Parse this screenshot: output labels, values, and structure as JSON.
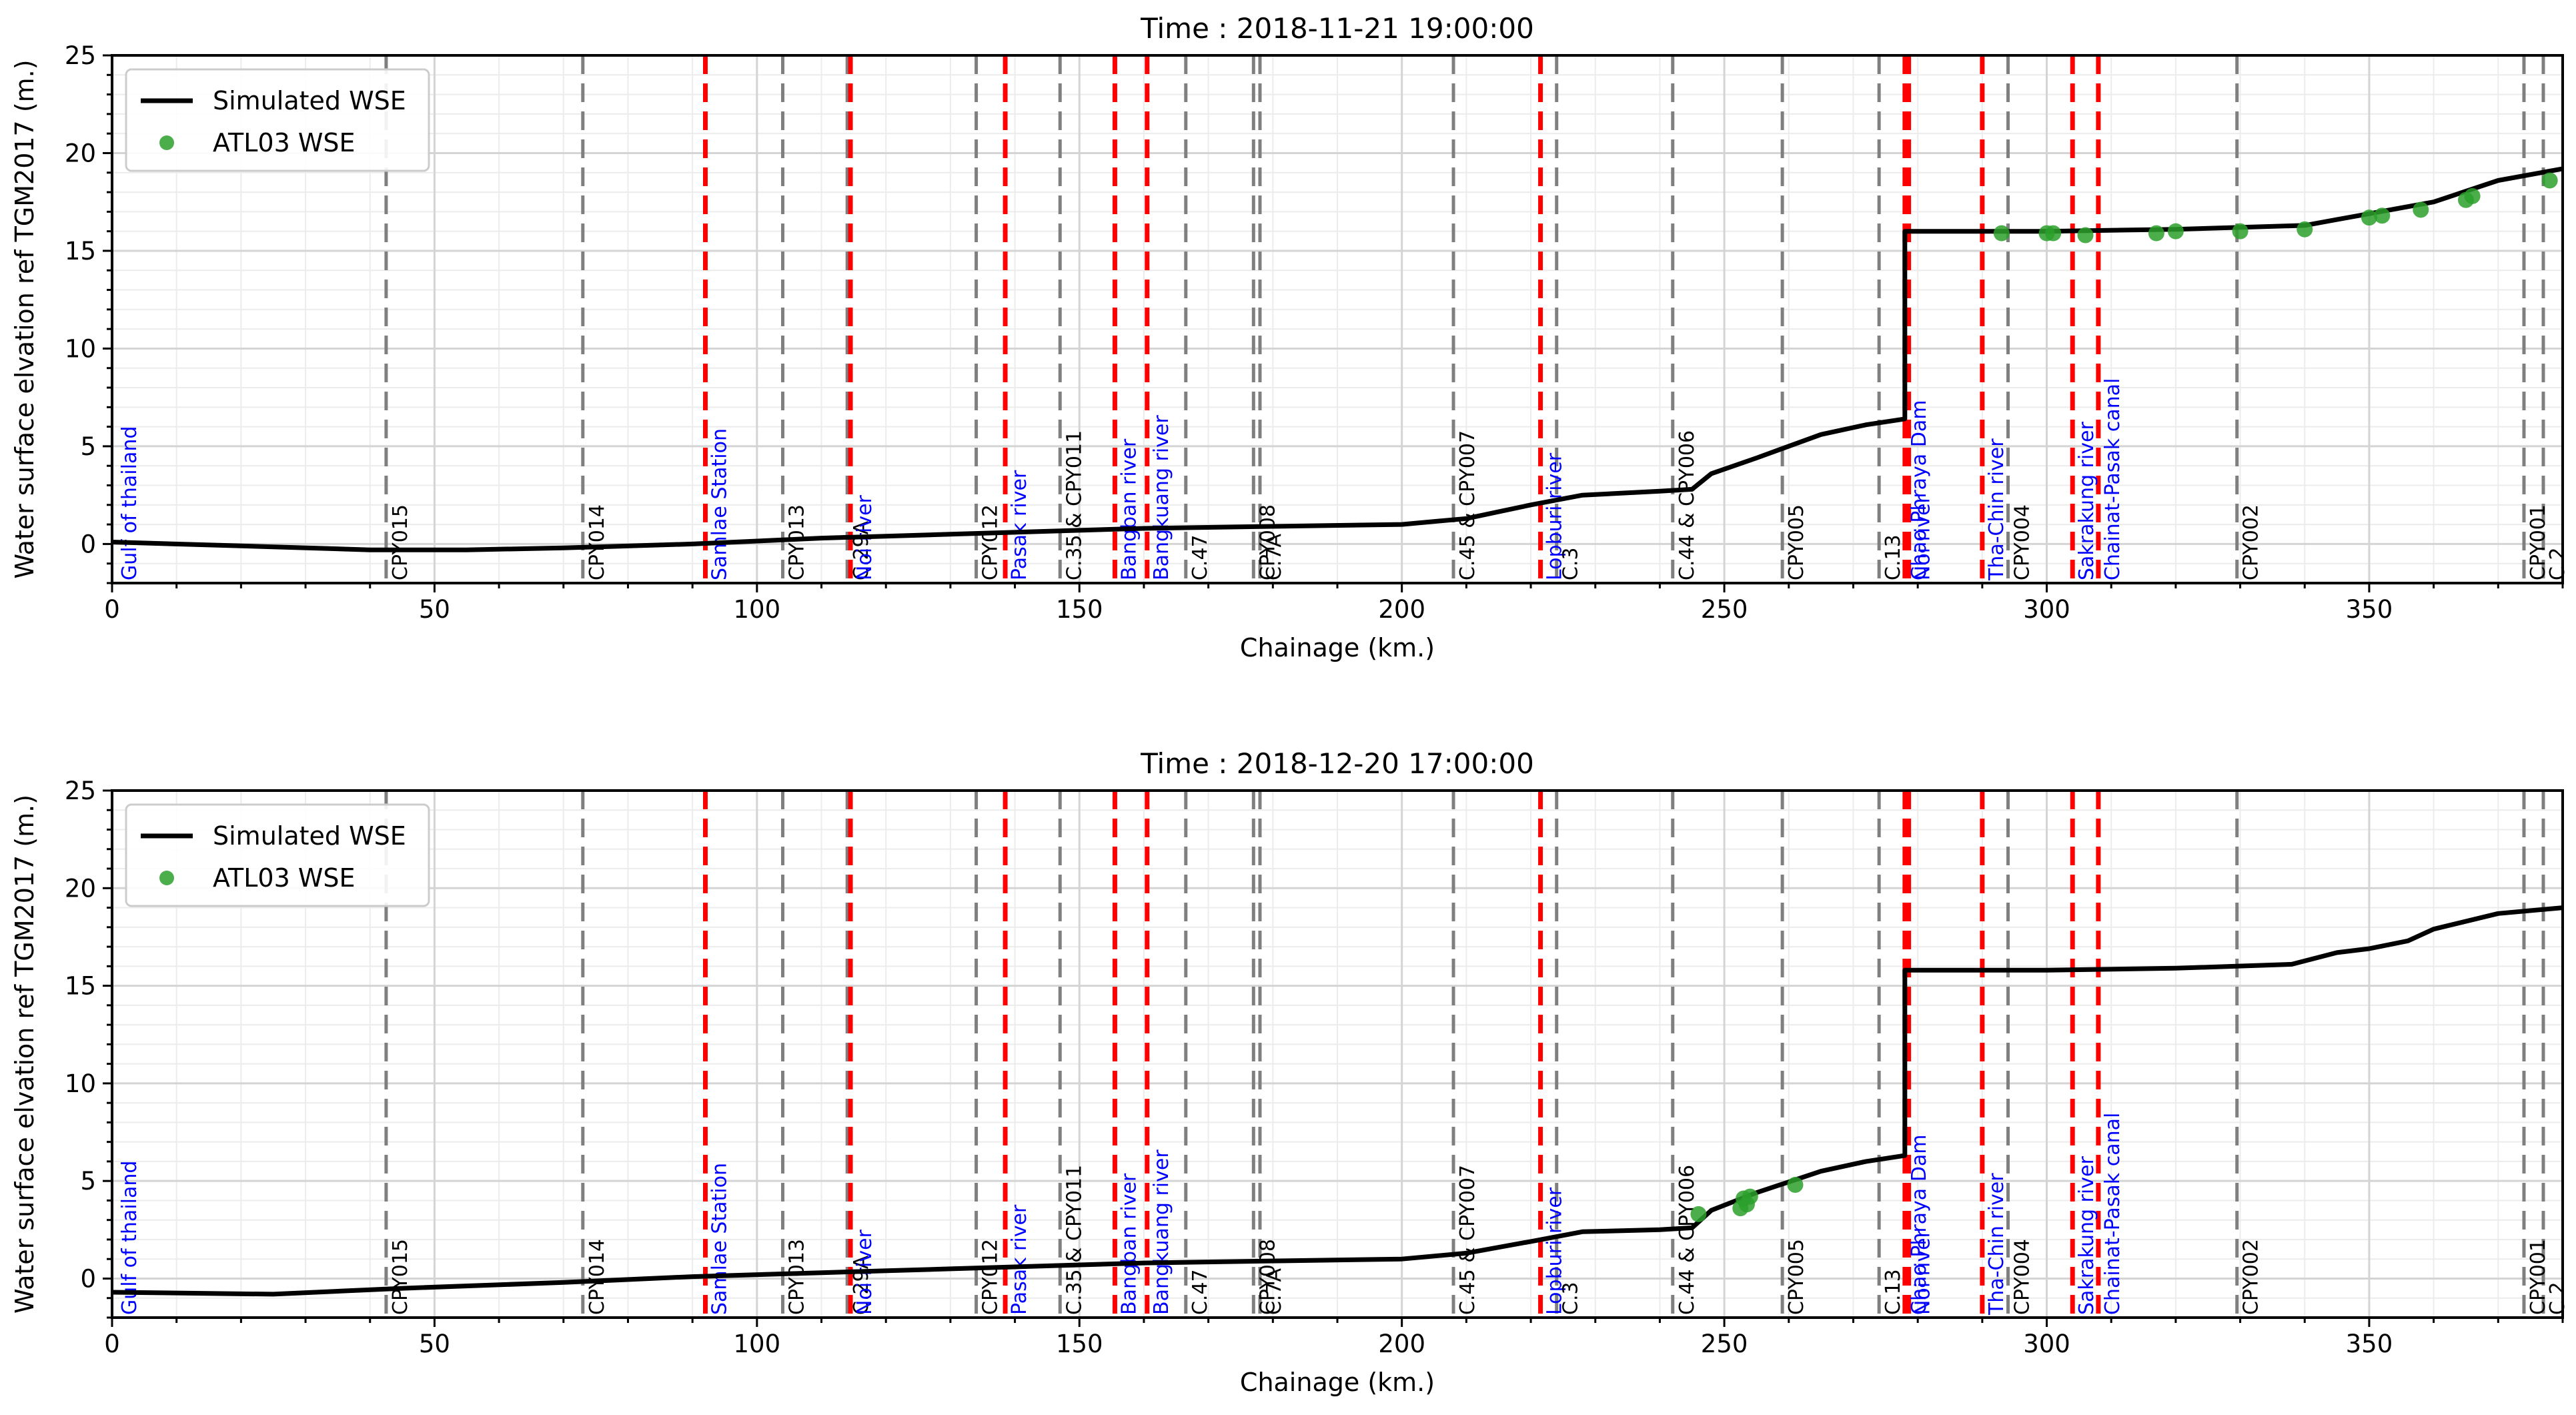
{
  "colors": {
    "sim_line": "#000000",
    "atl_points": "#2ca02c",
    "tributary": "#ff0000",
    "station": "#7f7f7f",
    "label_station": "#000000",
    "label_tributary": "#0000ff"
  },
  "chart_data": [
    {
      "type": "line",
      "title": "Time : 2018-11-21 19:00:00",
      "xlabel": "Chainage (km.)",
      "ylabel": "Water surface elvation ref TGM2017 (m.)",
      "xlim": [
        0,
        380
      ],
      "ylim": [
        -2,
        25
      ],
      "xticks": [
        0,
        50,
        100,
        150,
        200,
        250,
        300,
        350
      ],
      "yticks": [
        0,
        5,
        10,
        15,
        20,
        25
      ],
      "grid": true,
      "legend": {
        "position": "top-left",
        "entries": [
          "Simulated WSE",
          "ATL03 WSE"
        ]
      },
      "series": [
        {
          "name": "Simulated WSE",
          "x": [
            0,
            20,
            40,
            55,
            70,
            90,
            110,
            130,
            150,
            160,
            180,
            200,
            210,
            220,
            228,
            240,
            245,
            248,
            255,
            265,
            272,
            278,
            278,
            285,
            300,
            320,
            340,
            345,
            355,
            360,
            370,
            380
          ],
          "y": [
            0.1,
            -0.1,
            -0.3,
            -0.3,
            -0.2,
            0.0,
            0.3,
            0.5,
            0.7,
            0.8,
            0.9,
            1.0,
            1.3,
            2.0,
            2.5,
            2.7,
            2.8,
            3.6,
            4.4,
            5.6,
            6.1,
            6.4,
            16.0,
            16.0,
            16.0,
            16.1,
            16.3,
            16.6,
            17.2,
            17.5,
            18.6,
            19.2
          ]
        },
        {
          "name": "ATL03 WSE",
          "x": [
            293,
            300,
            301,
            306,
            317,
            320,
            330,
            340,
            350,
            352,
            358,
            365,
            366,
            378
          ],
          "y": [
            15.9,
            15.9,
            15.9,
            15.8,
            15.9,
            16.0,
            16.0,
            16.1,
            16.7,
            16.8,
            17.1,
            17.6,
            17.8,
            18.6
          ]
        }
      ],
      "vlines": [
        {
          "x": 0.5,
          "kind": "none",
          "label": "Gulf of thailand",
          "label_color": "blue"
        },
        {
          "x": 42.5,
          "kind": "station",
          "label": "CPY015",
          "label_color": "black"
        },
        {
          "x": 73,
          "kind": "station",
          "label": "CPY014",
          "label_color": "black"
        },
        {
          "x": 92,
          "kind": "tributary",
          "label": "Samlae Station",
          "label_color": "blue"
        },
        {
          "x": 104,
          "kind": "station",
          "label": "CPY013",
          "label_color": "black"
        },
        {
          "x": 114,
          "kind": "station",
          "label": "C.29A",
          "label_color": "black"
        },
        {
          "x": 114.5,
          "kind": "tributary",
          "label": "Noi river",
          "label_color": "blue"
        },
        {
          "x": 134,
          "kind": "station",
          "label": "CPY012",
          "label_color": "black"
        },
        {
          "x": 138.5,
          "kind": "tributary",
          "label": "Pasak river",
          "label_color": "blue"
        },
        {
          "x": 147,
          "kind": "station",
          "label": "C.35 & CPY011",
          "label_color": "black"
        },
        {
          "x": 155.5,
          "kind": "tributary",
          "label": "Bangban river",
          "label_color": "blue"
        },
        {
          "x": 160.5,
          "kind": "tributary",
          "label": "Bangkuang river",
          "label_color": "blue"
        },
        {
          "x": 166.5,
          "kind": "station",
          "label": "C.47",
          "label_color": "black"
        },
        {
          "x": 177,
          "kind": "station",
          "label": "CPY008",
          "label_color": "black"
        },
        {
          "x": 178,
          "kind": "station",
          "label": "C.7A",
          "label_color": "black"
        },
        {
          "x": 208,
          "kind": "station",
          "label": "C.45 & CPY007",
          "label_color": "black"
        },
        {
          "x": 221.5,
          "kind": "tributary",
          "label": "Lopburi river",
          "label_color": "blue"
        },
        {
          "x": 224,
          "kind": "station",
          "label": "C.3",
          "label_color": "black"
        },
        {
          "x": 242,
          "kind": "station",
          "label": "C.44 & CPY006",
          "label_color": "black"
        },
        {
          "x": 259,
          "kind": "station",
          "label": "CPY005",
          "label_color": "black"
        },
        {
          "x": 274,
          "kind": "station",
          "label": "C.13",
          "label_color": "black"
        },
        {
          "x": 278,
          "kind": "tributary",
          "label": "Chao Phraya Dam",
          "label_color": "blue"
        },
        {
          "x": 278.6,
          "kind": "tributary",
          "label": "Noi river",
          "label_color": "blue"
        },
        {
          "x": 290,
          "kind": "tributary",
          "label": "Tha-Chin river",
          "label_color": "blue"
        },
        {
          "x": 294,
          "kind": "station",
          "label": "CPY004",
          "label_color": "black"
        },
        {
          "x": 304,
          "kind": "tributary",
          "label": "Sakrakung river",
          "label_color": "blue"
        },
        {
          "x": 308,
          "kind": "tributary",
          "label": "Chainat-Pasak canal",
          "label_color": "blue"
        },
        {
          "x": 329.5,
          "kind": "station",
          "label": "CPY002",
          "label_color": "black"
        },
        {
          "x": 374,
          "kind": "station",
          "label": "CPY001",
          "label_color": "black"
        },
        {
          "x": 377,
          "kind": "station",
          "label": "C.2",
          "label_color": "black"
        }
      ]
    },
    {
      "type": "line",
      "title": "Time : 2018-12-20 17:00:00",
      "xlabel": "Chainage (km.)",
      "ylabel": "Water surface elvation ref TGM2017 (m.)",
      "xlim": [
        0,
        380
      ],
      "ylim": [
        -2,
        25
      ],
      "xticks": [
        0,
        50,
        100,
        150,
        200,
        250,
        300,
        350
      ],
      "yticks": [
        0,
        5,
        10,
        15,
        20,
        25
      ],
      "grid": true,
      "legend": {
        "position": "top-left",
        "entries": [
          "Simulated WSE",
          "ATL03 WSE"
        ]
      },
      "series": [
        {
          "name": "Simulated WSE",
          "x": [
            0,
            25,
            45,
            70,
            90,
            110,
            130,
            150,
            160,
            180,
            200,
            210,
            220,
            228,
            240,
            245,
            248,
            255,
            265,
            272,
            278,
            278,
            285,
            300,
            320,
            338,
            345,
            350,
            356,
            360,
            370,
            380
          ],
          "y": [
            -0.7,
            -0.8,
            -0.5,
            -0.2,
            0.1,
            0.3,
            0.5,
            0.7,
            0.8,
            0.9,
            1.0,
            1.3,
            1.9,
            2.4,
            2.5,
            2.6,
            3.5,
            4.4,
            5.5,
            6.0,
            6.3,
            15.8,
            15.8,
            15.8,
            15.9,
            16.1,
            16.7,
            16.9,
            17.3,
            17.9,
            18.7,
            19.0
          ]
        },
        {
          "name": "ATL03 WSE",
          "x": [
            246,
            252.5,
            253,
            253.5,
            254,
            261
          ],
          "y": [
            3.3,
            3.6,
            4.1,
            3.8,
            4.2,
            4.8
          ]
        }
      ],
      "vlines": [
        {
          "x": 0.5,
          "kind": "none",
          "label": "Gulf of thailand",
          "label_color": "blue"
        },
        {
          "x": 42.5,
          "kind": "station",
          "label": "CPY015",
          "label_color": "black"
        },
        {
          "x": 73,
          "kind": "station",
          "label": "CPY014",
          "label_color": "black"
        },
        {
          "x": 92,
          "kind": "tributary",
          "label": "Samlae Station",
          "label_color": "blue"
        },
        {
          "x": 104,
          "kind": "station",
          "label": "CPY013",
          "label_color": "black"
        },
        {
          "x": 114,
          "kind": "station",
          "label": "C.29A",
          "label_color": "black"
        },
        {
          "x": 114.5,
          "kind": "tributary",
          "label": "Noi river",
          "label_color": "blue"
        },
        {
          "x": 134,
          "kind": "station",
          "label": "CPY012",
          "label_color": "black"
        },
        {
          "x": 138.5,
          "kind": "tributary",
          "label": "Pasak river",
          "label_color": "blue"
        },
        {
          "x": 147,
          "kind": "station",
          "label": "C.35 & CPY011",
          "label_color": "black"
        },
        {
          "x": 155.5,
          "kind": "tributary",
          "label": "Bangban river",
          "label_color": "blue"
        },
        {
          "x": 160.5,
          "kind": "tributary",
          "label": "Bangkuang river",
          "label_color": "blue"
        },
        {
          "x": 166.5,
          "kind": "station",
          "label": "C.47",
          "label_color": "black"
        },
        {
          "x": 177,
          "kind": "station",
          "label": "CPY008",
          "label_color": "black"
        },
        {
          "x": 178,
          "kind": "station",
          "label": "C.7A",
          "label_color": "black"
        },
        {
          "x": 208,
          "kind": "station",
          "label": "C.45 & CPY007",
          "label_color": "black"
        },
        {
          "x": 221.5,
          "kind": "tributary",
          "label": "Lopburi river",
          "label_color": "blue"
        },
        {
          "x": 224,
          "kind": "station",
          "label": "C.3",
          "label_color": "black"
        },
        {
          "x": 242,
          "kind": "station",
          "label": "C.44 & CPY006",
          "label_color": "black"
        },
        {
          "x": 259,
          "kind": "station",
          "label": "CPY005",
          "label_color": "black"
        },
        {
          "x": 274,
          "kind": "station",
          "label": "C.13",
          "label_color": "black"
        },
        {
          "x": 278,
          "kind": "tributary",
          "label": "Chao Phraya Dam",
          "label_color": "blue"
        },
        {
          "x": 278.6,
          "kind": "tributary",
          "label": "Noi river",
          "label_color": "blue"
        },
        {
          "x": 290,
          "kind": "tributary",
          "label": "Tha-Chin river",
          "label_color": "blue"
        },
        {
          "x": 294,
          "kind": "station",
          "label": "CPY004",
          "label_color": "black"
        },
        {
          "x": 304,
          "kind": "tributary",
          "label": "Sakrakung river",
          "label_color": "blue"
        },
        {
          "x": 308,
          "kind": "tributary",
          "label": "Chainat-Pasak canal",
          "label_color": "blue"
        },
        {
          "x": 329.5,
          "kind": "station",
          "label": "CPY002",
          "label_color": "black"
        },
        {
          "x": 374,
          "kind": "station",
          "label": "CPY001",
          "label_color": "black"
        },
        {
          "x": 377,
          "kind": "station",
          "label": "C.2",
          "label_color": "black"
        }
      ]
    }
  ]
}
